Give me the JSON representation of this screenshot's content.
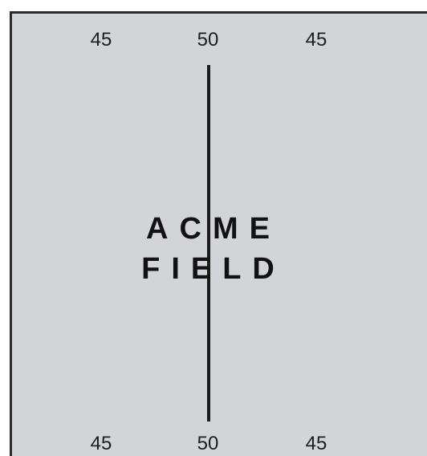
{
  "field": {
    "color": "#d2d4d7",
    "line_color": "#1b1b1b",
    "top_yard_numbers": [
      "45",
      "50",
      "45"
    ],
    "bottom_yard_numbers": [
      "45",
      "50",
      "45"
    ],
    "logo_line1": "ACME",
    "logo_line2": "FIELD"
  }
}
